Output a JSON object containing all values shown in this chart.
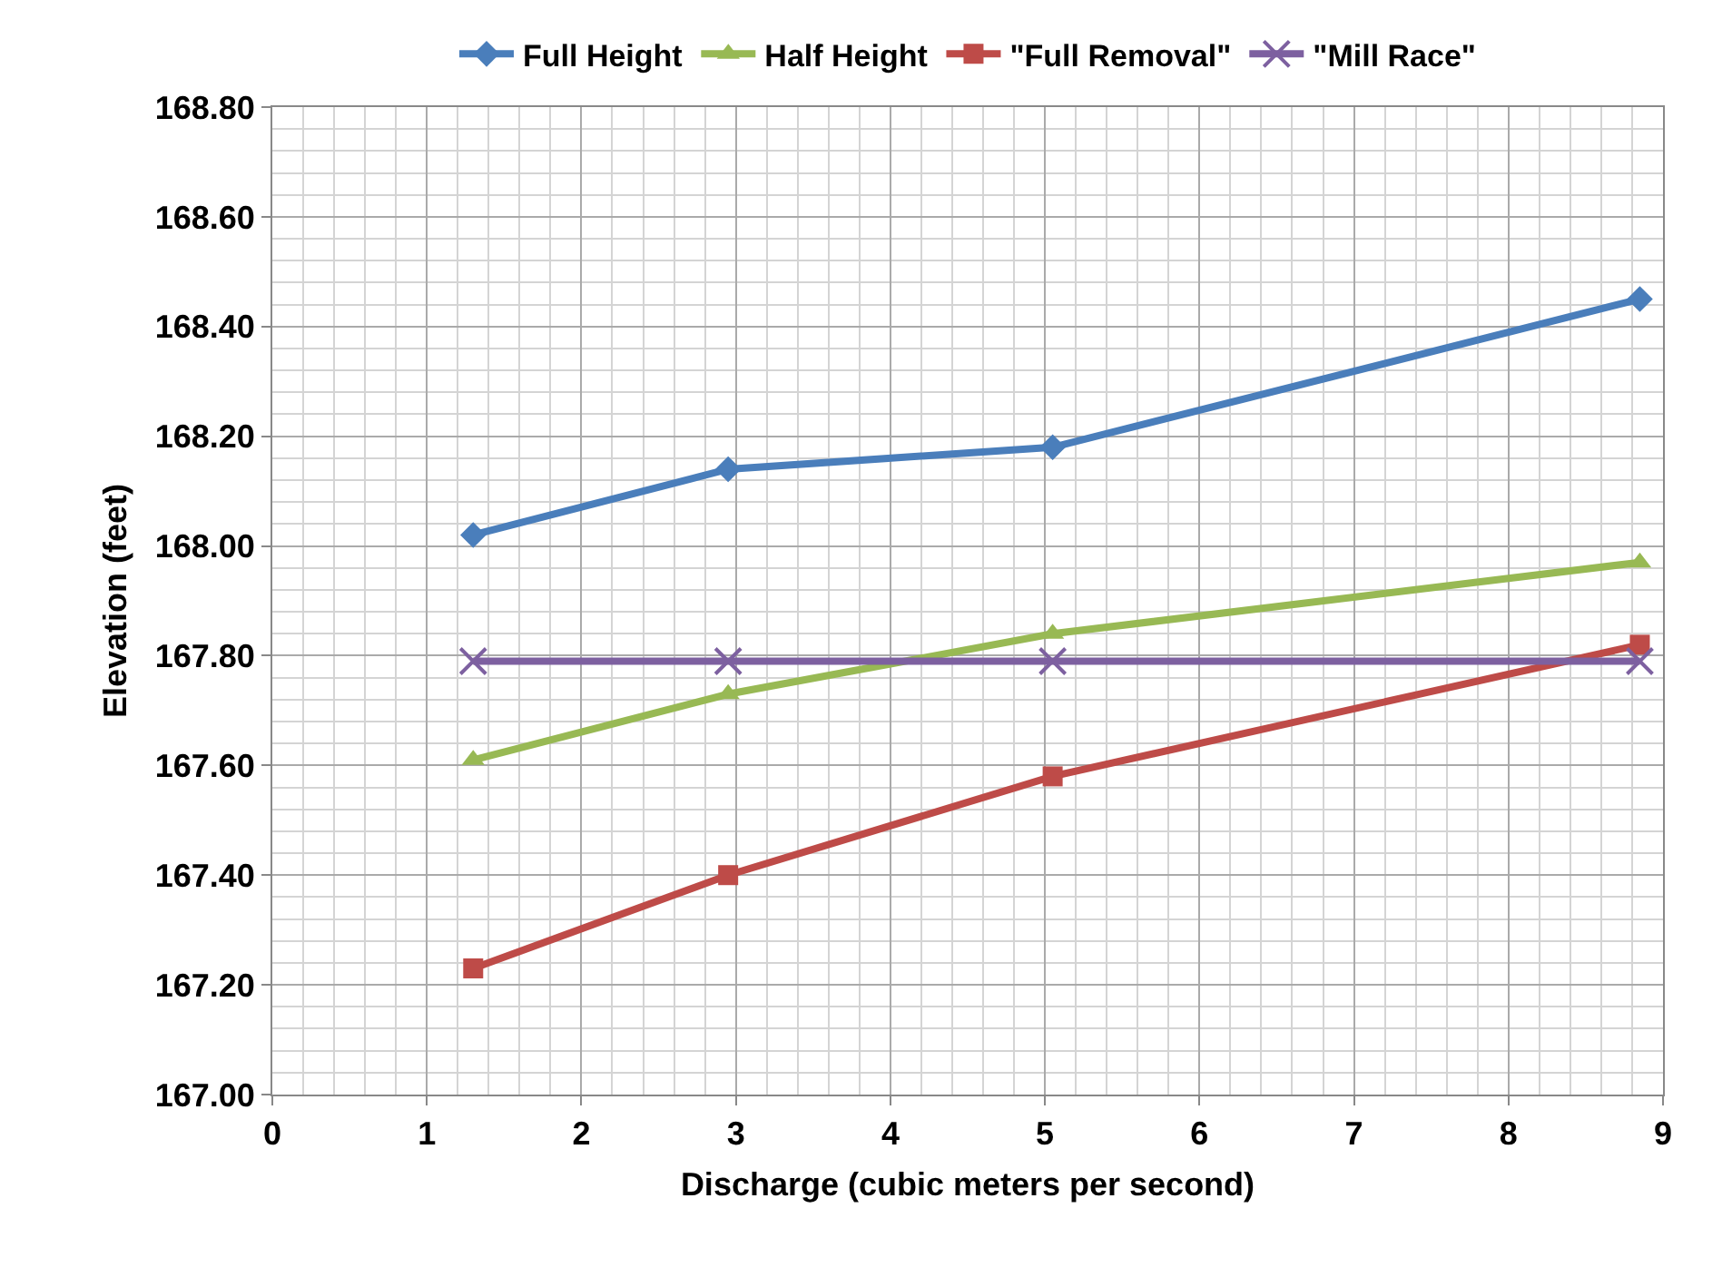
{
  "chart_data": {
    "type": "line",
    "xlabel": "Discharge (cubic meters per second)",
    "ylabel": "Elevation (feet)",
    "x": [
      1.3,
      2.95,
      5.05,
      8.85
    ],
    "series": [
      {
        "name": "Full Height",
        "color": "#4a7ebb",
        "marker": "diamond",
        "values": [
          168.02,
          168.14,
          168.18,
          168.45
        ]
      },
      {
        "name": "Half Height",
        "color": "#98b954",
        "marker": "triangle",
        "values": [
          167.61,
          167.73,
          167.84,
          167.97
        ]
      },
      {
        "name": "\"Full Removal\"",
        "color": "#be4b48",
        "marker": "square",
        "values": [
          167.23,
          167.4,
          167.58,
          167.82
        ]
      },
      {
        "name": "\"Mill Race\"",
        "color": "#7d60a0",
        "marker": "cross",
        "values": [
          167.79,
          167.79,
          167.79,
          167.79
        ]
      }
    ],
    "xlim": [
      0,
      9
    ],
    "xticks": [
      0,
      1,
      2,
      3,
      4,
      5,
      6,
      7,
      8,
      9
    ],
    "ylim": [
      167.0,
      168.8
    ],
    "yticks": [
      {
        "value": 167.0,
        "label": "167.00"
      },
      {
        "value": 167.2,
        "label": "167.20"
      },
      {
        "value": 167.4,
        "label": "167.40"
      },
      {
        "value": 167.6,
        "label": "167.60"
      },
      {
        "value": 167.8,
        "label": "167.80"
      },
      {
        "value": 168.0,
        "label": "168.00"
      },
      {
        "value": 168.2,
        "label": "168.20"
      },
      {
        "value": 168.4,
        "label": "168.40"
      },
      {
        "value": 168.6,
        "label": "168.60"
      },
      {
        "value": 168.8,
        "label": "168.80"
      }
    ],
    "grid": true,
    "legend": "top"
  }
}
